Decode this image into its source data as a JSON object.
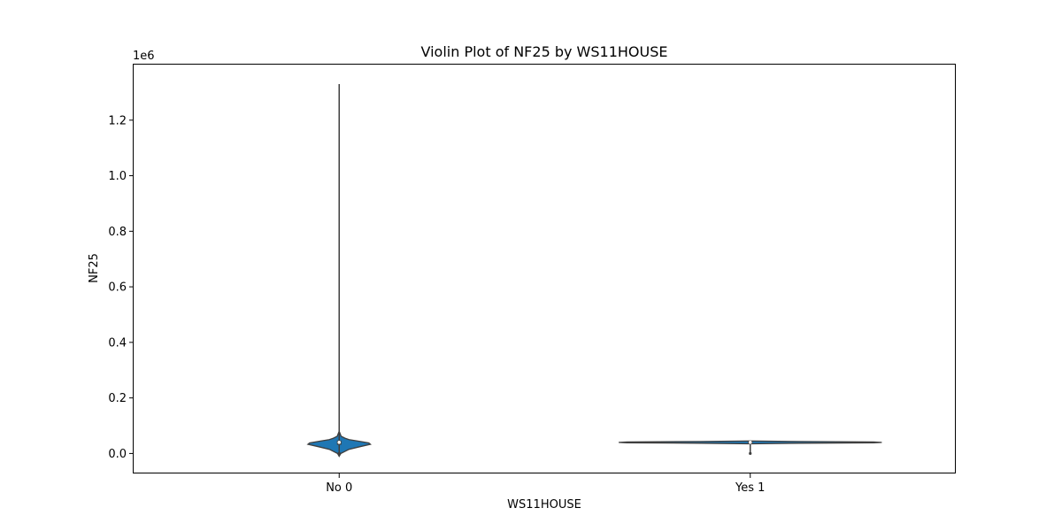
{
  "chart_data": {
    "type": "violin",
    "title": "Violin Plot of NF25 by WS11HOUSE",
    "xlabel": "WS11HOUSE",
    "ylabel": "NF25",
    "y_multiplier_label": "1e6",
    "ylim": [
      -72000,
      1400000
    ],
    "y_ticks": [
      0,
      200000,
      400000,
      600000,
      800000,
      1000000,
      1200000
    ],
    "y_tick_labels": [
      "0.0",
      "0.2",
      "0.4",
      "0.6",
      "0.8",
      "1.0",
      "1.2"
    ],
    "categories": [
      "No 0",
      "Yes 1"
    ],
    "fill_color": "#1f77b4",
    "edge_color": "#3f3f3f",
    "violins": [
      {
        "category": "No 0",
        "min": 0,
        "max": 1330000,
        "q1": 33000,
        "median": 40000,
        "q3": 45000,
        "whisker_low": 0,
        "whisker_high": 60000,
        "density_y": [
          -10000,
          0,
          15000,
          25000,
          33000,
          38000,
          45000,
          50000,
          55000,
          62000,
          80000
        ],
        "density_w": [
          0,
          0.01,
          0.06,
          0.13,
          0.19,
          0.18,
          0.11,
          0.06,
          0.035,
          0.012,
          0
        ]
      },
      {
        "category": "Yes 1",
        "min": 0,
        "max": 45000,
        "q1": 38000,
        "median": 40000,
        "q3": 41000,
        "whisker_low": 0,
        "whisker_high": 43000,
        "density_y": [
          35000,
          37000,
          38500,
          40000,
          41500,
          43000,
          45000
        ],
        "density_w": [
          0,
          0.3,
          0.75,
          0.8,
          0.75,
          0.3,
          0
        ]
      }
    ]
  }
}
